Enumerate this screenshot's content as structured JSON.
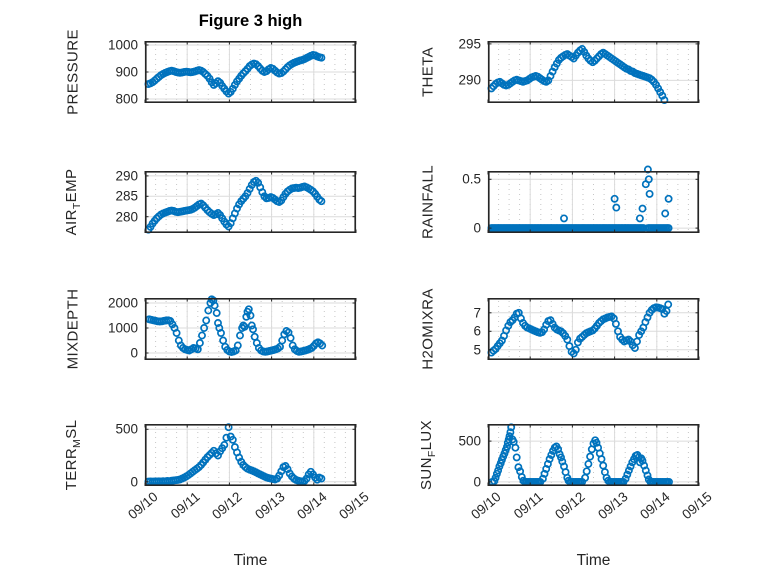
{
  "figure": {
    "title": "Figure 3 high"
  },
  "style": {
    "marker_color": "#0072BD",
    "axis_color": "#262626",
    "grid_color": "#dbdbdb",
    "minor_grid_color": "#c6c6c6",
    "text_color": "#262626",
    "background": "#ffffff"
  },
  "x_axis": {
    "label": "Time",
    "lim": [
      0,
      5
    ],
    "ticks": [
      0,
      1,
      2,
      3,
      4,
      5
    ],
    "tick_labels": [
      "09/10",
      "09/11",
      "09/12",
      "09/13",
      "09/14",
      "09/15"
    ],
    "minor_step": 0.25
  },
  "chart_data": [
    {
      "id": "pressure",
      "type": "scatter",
      "ylabel": "PRESSURE",
      "ylim": [
        785,
        1015
      ],
      "yticks": [
        800,
        900,
        1000
      ],
      "series_t0": 0.08,
      "series_dt": 0.05,
      "values": [
        855,
        858,
        862,
        868,
        875,
        882,
        888,
        893,
        897,
        900,
        903,
        905,
        903,
        900,
        898,
        897,
        898,
        900,
        901,
        900,
        899,
        900,
        902,
        905,
        907,
        905,
        900,
        893,
        885,
        875,
        862,
        852,
        858,
        866,
        860,
        848,
        838,
        828,
        820,
        826,
        838,
        852,
        865,
        875,
        886,
        895,
        903,
        912,
        922,
        928,
        931,
        929,
        922,
        913,
        905,
        900,
        903,
        910,
        915,
        912,
        905,
        898,
        894,
        896,
        902,
        910,
        918,
        925,
        930,
        934,
        937,
        940,
        943,
        945,
        948,
        952,
        956,
        960,
        963,
        962,
        958,
        955,
        953
      ]
    },
    {
      "id": "theta",
      "type": "scatter",
      "ylabel": "THETA",
      "ylim": [
        286.9,
        295.4
      ],
      "yticks": [
        290,
        295
      ],
      "series_t0": 0.08,
      "series_dt": 0.05,
      "values": [
        288.9,
        289.2,
        289.5,
        289.7,
        289.8,
        289.6,
        289.4,
        289.3,
        289.4,
        289.6,
        289.8,
        290.0,
        290.1,
        290.0,
        289.9,
        289.8,
        289.9,
        290.0,
        290.2,
        290.4,
        290.5,
        290.6,
        290.5,
        290.3,
        290.1,
        289.9,
        289.8,
        290.0,
        290.6,
        291.2,
        291.8,
        292.3,
        292.8,
        293.1,
        293.3,
        293.5,
        293.6,
        293.4,
        293.2,
        293.0,
        293.4,
        293.8,
        294.1,
        294.3,
        293.9,
        293.4,
        293.0,
        292.7,
        292.5,
        292.7,
        293.0,
        293.3,
        293.6,
        293.8,
        293.6,
        293.4,
        293.2,
        293.0,
        292.8,
        292.6,
        292.4,
        292.2,
        292.0,
        291.8,
        291.6,
        291.5,
        291.3,
        291.2,
        291.0,
        290.9,
        290.8,
        290.7,
        290.6,
        290.5,
        290.4,
        290.3,
        290.1,
        289.8,
        289.4,
        288.9,
        288.4,
        287.9,
        287.3
      ]
    },
    {
      "id": "air_temp",
      "type": "scatter",
      "ylabel": "AIR_TEMP",
      "ylim": [
        276,
        291.2
      ],
      "yticks": [
        280,
        285,
        290
      ],
      "series_t0": 0.08,
      "series_dt": 0.05,
      "values": [
        276.8,
        277.5,
        278.3,
        279.0,
        279.6,
        280.1,
        280.5,
        280.8,
        281.0,
        281.2,
        281.4,
        281.5,
        281.4,
        281.2,
        281.1,
        281.2,
        281.3,
        281.4,
        281.5,
        281.6,
        281.7,
        281.9,
        282.2,
        282.6,
        283.0,
        283.2,
        282.8,
        282.2,
        281.6,
        281.1,
        280.7,
        280.4,
        280.6,
        280.9,
        280.4,
        279.6,
        278.8,
        278.1,
        277.6,
        278.4,
        279.6,
        280.8,
        282.0,
        283.0,
        283.8,
        284.4,
        285.0,
        285.8,
        286.8,
        287.8,
        288.5,
        288.8,
        288.3,
        287.2,
        286.0,
        285.0,
        284.5,
        284.6,
        284.8,
        284.6,
        284.2,
        283.8,
        283.6,
        284.0,
        284.8,
        285.6,
        286.2,
        286.6,
        286.9,
        287.0,
        287.1,
        287.0,
        287.1,
        287.3,
        287.4,
        287.2,
        286.9,
        286.6,
        286.2,
        285.6,
        284.9,
        284.2,
        283.8
      ]
    },
    {
      "id": "rainfall",
      "type": "scatter",
      "ylabel": "RAINFALL",
      "ylim": [
        -0.05,
        0.585
      ],
      "yticks": [
        0,
        0.5
      ],
      "points": [
        [
          1.8,
          0.1
        ],
        [
          3.0,
          0.3
        ],
        [
          3.04,
          0.21
        ],
        [
          3.6,
          0.1
        ],
        [
          3.66,
          0.2
        ],
        [
          3.74,
          0.45
        ],
        [
          3.79,
          0.6
        ],
        [
          3.81,
          0.5
        ],
        [
          3.83,
          0.35
        ],
        [
          4.2,
          0.15
        ],
        [
          4.28,
          0.3
        ]
      ],
      "zero_runs": [
        [
          0.08,
          3.7,
          0.035
        ],
        [
          3.8,
          4.3,
          0.04
        ]
      ]
    },
    {
      "id": "mixdepth",
      "type": "scatter",
      "ylabel": "MIXDEPTH",
      "ylim": [
        -280,
        2200
      ],
      "yticks": [
        0,
        1000,
        2000
      ],
      "points": [
        [
          0.1,
          1350
        ],
        [
          0.15,
          1330
        ],
        [
          0.2,
          1310
        ],
        [
          0.25,
          1290
        ],
        [
          0.3,
          1270
        ],
        [
          0.35,
          1260
        ],
        [
          0.4,
          1270
        ],
        [
          0.45,
          1290
        ],
        [
          0.5,
          1300
        ],
        [
          0.55,
          1310
        ],
        [
          0.6,
          1280
        ],
        [
          0.65,
          1150
        ],
        [
          0.7,
          1000
        ],
        [
          0.75,
          800
        ],
        [
          0.8,
          500
        ],
        [
          0.85,
          300
        ],
        [
          0.9,
          200
        ],
        [
          0.95,
          150
        ],
        [
          1.0,
          120
        ],
        [
          1.05,
          100
        ],
        [
          1.1,
          150
        ],
        [
          1.15,
          200
        ],
        [
          1.2,
          180
        ],
        [
          1.25,
          150
        ],
        [
          1.3,
          400
        ],
        [
          1.35,
          700
        ],
        [
          1.4,
          1000
        ],
        [
          1.45,
          1300
        ],
        [
          1.5,
          1700
        ],
        [
          1.55,
          2000
        ],
        [
          1.58,
          2150
        ],
        [
          1.62,
          2100
        ],
        [
          1.65,
          1900
        ],
        [
          1.7,
          1600
        ],
        [
          1.73,
          1200
        ],
        [
          1.76,
          1000
        ],
        [
          1.8,
          800
        ],
        [
          1.85,
          500
        ],
        [
          1.9,
          250
        ],
        [
          1.95,
          120
        ],
        [
          2.0,
          60
        ],
        [
          2.05,
          40
        ],
        [
          2.1,
          60
        ],
        [
          2.15,
          100
        ],
        [
          2.2,
          300
        ],
        [
          2.25,
          700
        ],
        [
          2.3,
          1000
        ],
        [
          2.33,
          1100
        ],
        [
          2.36,
          1050
        ],
        [
          2.4,
          1450
        ],
        [
          2.43,
          1650
        ],
        [
          2.46,
          1750
        ],
        [
          2.5,
          1500
        ],
        [
          2.53,
          1100
        ],
        [
          2.56,
          950
        ],
        [
          2.6,
          650
        ],
        [
          2.65,
          400
        ],
        [
          2.7,
          200
        ],
        [
          2.75,
          100
        ],
        [
          2.8,
          60
        ],
        [
          2.85,
          50
        ],
        [
          2.9,
          60
        ],
        [
          2.95,
          80
        ],
        [
          3.0,
          100
        ],
        [
          3.05,
          120
        ],
        [
          3.1,
          150
        ],
        [
          3.15,
          180
        ],
        [
          3.2,
          250
        ],
        [
          3.25,
          500
        ],
        [
          3.3,
          750
        ],
        [
          3.35,
          880
        ],
        [
          3.4,
          820
        ],
        [
          3.45,
          600
        ],
        [
          3.5,
          300
        ],
        [
          3.55,
          150
        ],
        [
          3.6,
          80
        ],
        [
          3.65,
          50
        ],
        [
          3.7,
          60
        ],
        [
          3.75,
          80
        ],
        [
          3.8,
          100
        ],
        [
          3.85,
          130
        ],
        [
          3.9,
          160
        ],
        [
          3.95,
          200
        ],
        [
          4.0,
          280
        ],
        [
          4.05,
          380
        ],
        [
          4.1,
          430
        ],
        [
          4.15,
          380
        ],
        [
          4.2,
          300
        ]
      ]
    },
    {
      "id": "h2omixra",
      "type": "scatter",
      "ylabel": "H2OMIXRA",
      "ylim": [
        4.45,
        7.8
      ],
      "yticks": [
        5,
        6,
        7
      ],
      "series_t0": 0.08,
      "series_dt": 0.05,
      "values": [
        4.85,
        4.95,
        5.05,
        5.2,
        5.35,
        5.5,
        5.75,
        6.05,
        6.3,
        6.5,
        6.6,
        6.75,
        6.95,
        7.0,
        6.7,
        6.45,
        6.3,
        6.2,
        6.15,
        6.1,
        6.05,
        6.0,
        5.95,
        5.92,
        5.95,
        6.1,
        6.35,
        6.55,
        6.6,
        6.4,
        6.2,
        6.1,
        6.05,
        6.0,
        5.9,
        5.75,
        5.55,
        5.2,
        4.9,
        4.8,
        5.0,
        5.4,
        5.6,
        5.7,
        5.8,
        5.9,
        5.95,
        6.0,
        6.05,
        6.15,
        6.3,
        6.45,
        6.55,
        6.65,
        6.7,
        6.75,
        6.78,
        6.8,
        6.7,
        6.4,
        6.0,
        5.7,
        5.55,
        5.45,
        5.5,
        5.55,
        5.45,
        5.25,
        5.1,
        5.45,
        5.8,
        6.0,
        6.2,
        6.5,
        6.75,
        7.0,
        7.15,
        7.25,
        7.3,
        7.28,
        7.25,
        7.2,
        6.95
      ],
      "points": [
        [
          4.23,
          7.1
        ],
        [
          4.27,
          7.45
        ]
      ]
    },
    {
      "id": "terr_msl",
      "type": "scatter",
      "ylabel": "TERR_MSL",
      "ylim": [
        -40,
        550
      ],
      "yticks": [
        0,
        500
      ],
      "show_x_axis": true,
      "series_t0": 0.08,
      "series_dt": 0.05,
      "values": [
        2,
        3,
        2,
        4,
        3,
        5,
        4,
        6,
        5,
        8,
        6,
        10,
        12,
        15,
        18,
        22,
        30,
        40,
        52,
        65,
        80,
        95,
        110,
        125,
        140,
        160,
        185,
        210,
        235,
        255,
        275,
        295,
        270,
        250,
        290,
        320,
        350,
        420,
        520,
        430,
        400,
        330,
        280,
        230,
        190,
        160,
        140,
        125,
        115,
        108,
        100,
        90,
        80,
        70,
        60,
        50,
        42,
        35,
        30,
        26,
        22,
        30,
        60,
        100,
        140,
        150,
        120,
        80,
        50,
        30,
        18,
        10,
        6,
        4,
        8,
        30,
        70,
        95,
        70,
        40,
        20,
        40,
        30
      ]
    },
    {
      "id": "sun_flux",
      "type": "scatter",
      "ylabel": "SUN_FLUX",
      "ylim": [
        -50,
        710
      ],
      "yticks": [
        0,
        500
      ],
      "show_x_axis": true,
      "points": [
        [
          0.1,
          0
        ],
        [
          0.15,
          10
        ],
        [
          0.18,
          50
        ],
        [
          0.21,
          100
        ],
        [
          0.24,
          140
        ],
        [
          0.27,
          190
        ],
        [
          0.3,
          230
        ],
        [
          0.33,
          270
        ],
        [
          0.36,
          310
        ],
        [
          0.39,
          350
        ],
        [
          0.42,
          390
        ],
        [
          0.45,
          430
        ],
        [
          0.47,
          480
        ],
        [
          0.49,
          520
        ],
        [
          0.51,
          560
        ],
        [
          0.53,
          610
        ],
        [
          0.55,
          670
        ],
        [
          0.58,
          520
        ],
        [
          0.61,
          490
        ],
        [
          0.65,
          420
        ],
        [
          0.68,
          300
        ],
        [
          0.72,
          180
        ],
        [
          0.76,
          130
        ],
        [
          0.8,
          60
        ],
        [
          0.84,
          15
        ],
        [
          1.3,
          40
        ],
        [
          1.34,
          100
        ],
        [
          1.38,
          160
        ],
        [
          1.42,
          220
        ],
        [
          1.46,
          280
        ],
        [
          1.5,
          330
        ],
        [
          1.54,
          380
        ],
        [
          1.58,
          420
        ],
        [
          1.62,
          435
        ],
        [
          1.66,
          400
        ],
        [
          1.7,
          340
        ],
        [
          1.73,
          300
        ],
        [
          1.76,
          250
        ],
        [
          1.8,
          190
        ],
        [
          1.84,
          120
        ],
        [
          1.88,
          50
        ],
        [
          1.91,
          15
        ],
        [
          2.3,
          50
        ],
        [
          2.34,
          130
        ],
        [
          2.38,
          220
        ],
        [
          2.42,
          310
        ],
        [
          2.46,
          400
        ],
        [
          2.5,
          470
        ],
        [
          2.54,
          510
        ],
        [
          2.57,
          480
        ],
        [
          2.61,
          420
        ],
        [
          2.65,
          350
        ],
        [
          2.69,
          280
        ],
        [
          2.73,
          200
        ],
        [
          2.77,
          120
        ],
        [
          2.81,
          50
        ],
        [
          2.85,
          15
        ],
        [
          3.26,
          40
        ],
        [
          3.3,
          90
        ],
        [
          3.34,
          140
        ],
        [
          3.38,
          190
        ],
        [
          3.42,
          240
        ],
        [
          3.46,
          280
        ],
        [
          3.5,
          320
        ],
        [
          3.54,
          330
        ],
        [
          3.57,
          300
        ],
        [
          3.6,
          240
        ],
        [
          3.63,
          290
        ],
        [
          3.66,
          260
        ],
        [
          3.7,
          200
        ],
        [
          3.74,
          140
        ],
        [
          3.78,
          80
        ],
        [
          3.81,
          30
        ]
      ],
      "zero_runs": [
        [
          0.88,
          1.26,
          0.04
        ],
        [
          1.95,
          2.26,
          0.04
        ],
        [
          2.89,
          3.22,
          0.04
        ],
        [
          3.85,
          4.3,
          0.04
        ]
      ]
    }
  ]
}
